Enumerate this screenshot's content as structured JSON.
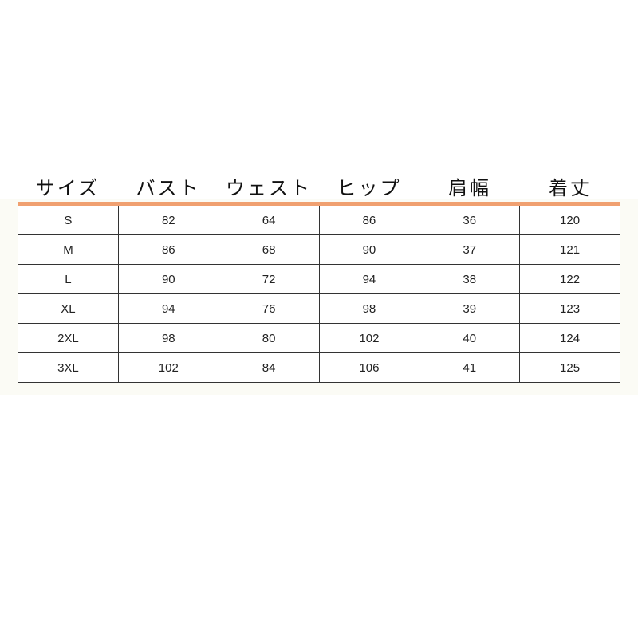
{
  "headers": [
    "サイズ",
    "バスト",
    "ウェスト",
    "ヒップ",
    "肩幅",
    "着丈"
  ],
  "accent_color": "#f0a070",
  "rows": [
    [
      "S",
      "82",
      "64",
      "86",
      "36",
      "120"
    ],
    [
      "M",
      "86",
      "68",
      "90",
      "37",
      "121"
    ],
    [
      "L",
      "90",
      "72",
      "94",
      "38",
      "122"
    ],
    [
      "XL",
      "94",
      "76",
      "98",
      "39",
      "123"
    ],
    [
      "2XL",
      "98",
      "80",
      "102",
      "40",
      "124"
    ],
    [
      "3XL",
      "102",
      "84",
      "106",
      "41",
      "125"
    ]
  ]
}
